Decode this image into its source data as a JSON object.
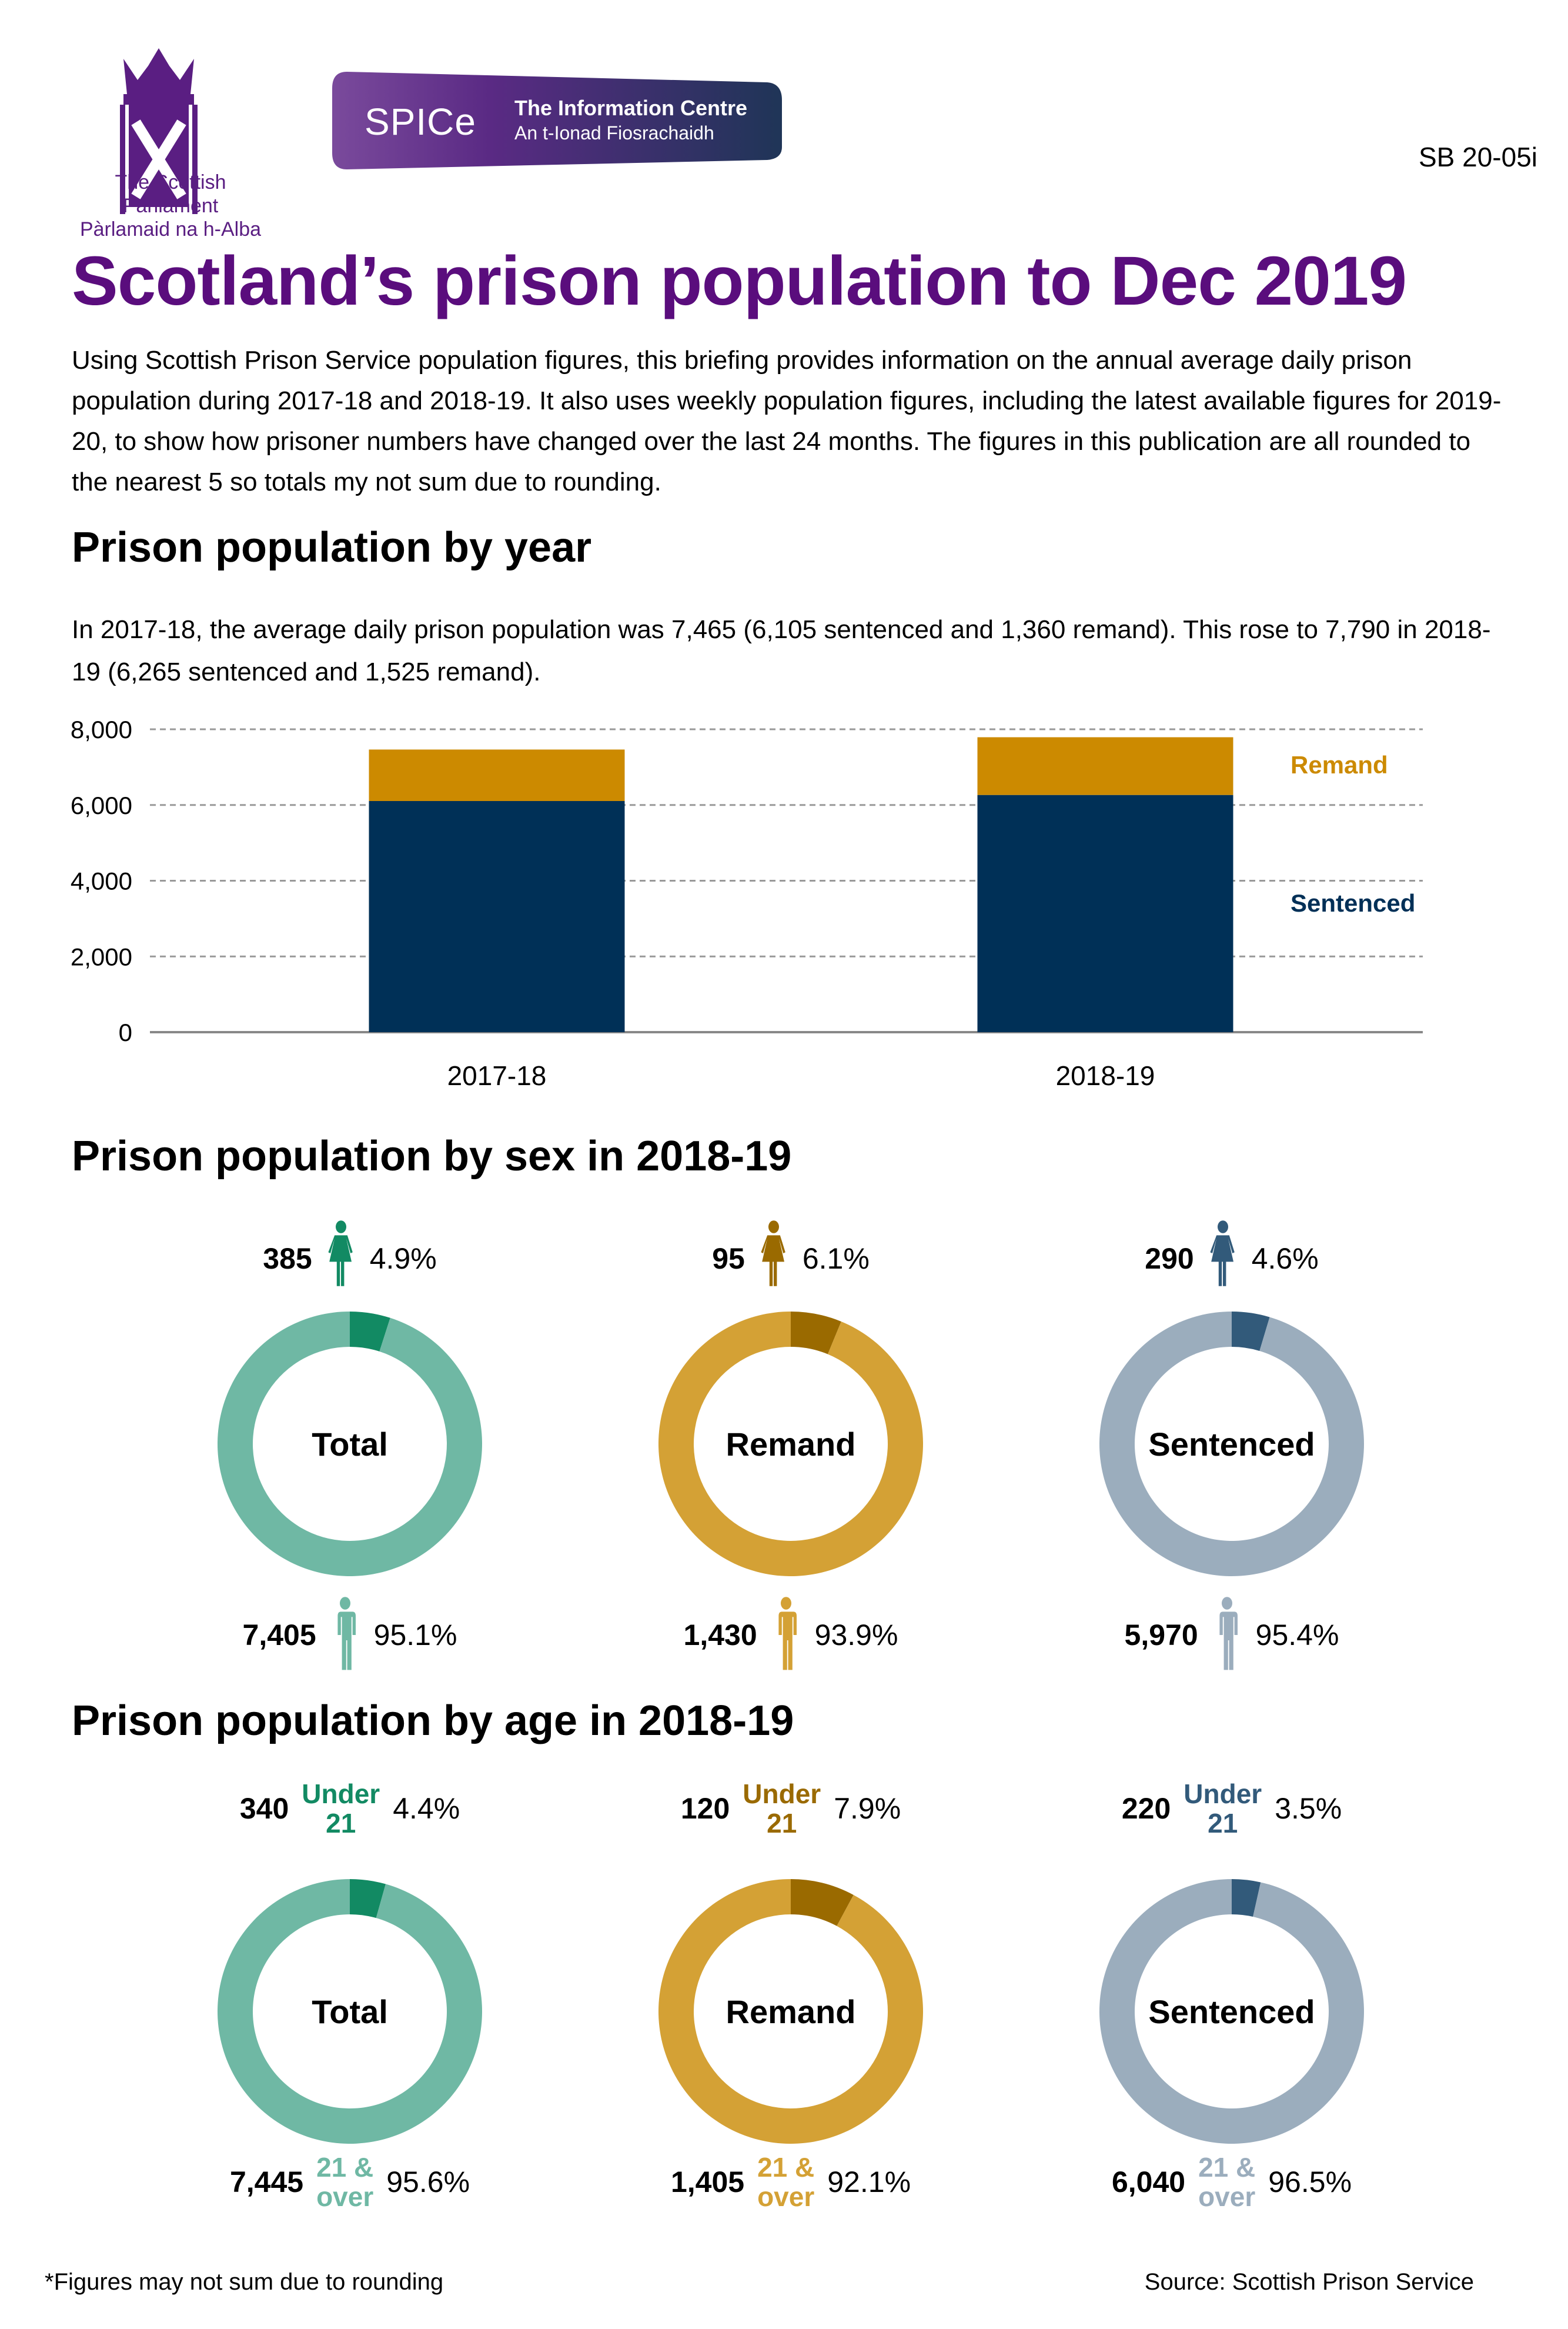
{
  "header": {
    "parliament_name_en": "The Scottish Parliament",
    "parliament_name_gd": "Pàrlamaid na h-Alba",
    "spice_acronym": "SPICe",
    "spice_title_en": "The Information Centre",
    "spice_title_gd": "An t-Ionad Fiosrachaidh",
    "briefing_code": "SB 20-05i",
    "colors": {
      "parliament_purple": "#5a1e82",
      "spice_gradient_start": "#7a4a9c",
      "spice_gradient_end": "#1f3557"
    }
  },
  "title": "Scotland’s prison population to Dec 2019",
  "intro": "Using Scottish Prison Service population figures, this briefing provides information on the annual average daily prison population during 2017-18 and 2018-19. It also uses weekly population figures, including the latest available figures for 2019-20, to show how prisoner numbers have changed over the last 24 months. The figures in this publication are all rounded to the nearest 5 so totals my not sum due to rounding.",
  "by_year": {
    "heading": "Prison population by year",
    "text": "In 2017-18, the average daily prison population was 7,465 (6,105 sentenced and 1,360 remand). This rose to 7,790 in 2018-19 (6,265 sentenced and 1,525 remand)."
  },
  "chart_data": [
    {
      "type": "bar",
      "stacked": true,
      "title": "Prison population by year",
      "categories": [
        "2017-18",
        "2018-19"
      ],
      "series": [
        {
          "name": "Sentenced",
          "values": [
            6105,
            6265
          ],
          "color": "#003057"
        },
        {
          "name": "Remand",
          "values": [
            1360,
            1525
          ],
          "color": "#cc8a00"
        }
      ],
      "ylim": [
        0,
        8000
      ],
      "yticks": [
        0,
        2000,
        4000,
        6000,
        8000
      ],
      "ytick_labels": [
        "0",
        "2,000",
        "4,000",
        "6,000",
        "8,000"
      ],
      "grid": true,
      "legend": "right",
      "xlabel": "",
      "ylabel": ""
    },
    {
      "type": "pie",
      "variant": "donut",
      "title": "Prison population by sex in 2018-19",
      "charts": [
        {
          "label": "Total",
          "slices": [
            {
              "name": "Female",
              "value": 385,
              "pct": "4.9%"
            },
            {
              "name": "Male",
              "value": 7405,
              "pct": "95.1%"
            }
          ],
          "colors": [
            "#128a63",
            "#6fb8a4"
          ]
        },
        {
          "label": "Remand",
          "slices": [
            {
              "name": "Female",
              "value": 95,
              "pct": "6.1%"
            },
            {
              "name": "Male",
              "value": 1430,
              "pct": "93.9%"
            }
          ],
          "colors": [
            "#9a6a00",
            "#d4a135"
          ]
        },
        {
          "label": "Sentenced",
          "slices": [
            {
              "name": "Female",
              "value": 290,
              "pct": "4.6%"
            },
            {
              "name": "Male",
              "value": 5970,
              "pct": "95.4%"
            }
          ],
          "colors": [
            "#325a7a",
            "#9badbd"
          ]
        }
      ]
    },
    {
      "type": "pie",
      "variant": "donut",
      "title": "Prison population by age in 2018-19",
      "charts": [
        {
          "label": "Total",
          "slices": [
            {
              "name": "Under 21",
              "value": 340,
              "pct": "4.4%"
            },
            {
              "name": "21 & over",
              "value": 7445,
              "pct": "95.6%"
            }
          ],
          "colors": [
            "#128a63",
            "#6fb8a4"
          ]
        },
        {
          "label": "Remand",
          "slices": [
            {
              "name": "Under 21",
              "value": 120,
              "pct": "7.9%"
            },
            {
              "name": "21 & over",
              "value": 1405,
              "pct": "92.1%"
            }
          ],
          "colors": [
            "#9a6a00",
            "#d4a135"
          ]
        },
        {
          "label": "Sentenced",
          "slices": [
            {
              "name": "Under 21",
              "value": 220,
              "pct": "3.5%"
            },
            {
              "name": "21 & over",
              "value": 6040,
              "pct": "96.5%"
            }
          ],
          "colors": [
            "#325a7a",
            "#9badbd"
          ]
        }
      ]
    }
  ],
  "by_sex": {
    "heading": "Prison population by sex in 2018-19",
    "groups": [
      {
        "label": "Total",
        "female_n": "385",
        "female_pct": "4.9%",
        "male_n": "7,405",
        "male_pct": "95.1%"
      },
      {
        "label": "Remand",
        "female_n": "95",
        "female_pct": "6.1%",
        "male_n": "1,430",
        "male_pct": "93.9%"
      },
      {
        "label": "Sentenced",
        "female_n": "290",
        "female_pct": "4.6%",
        "male_n": "5,970",
        "male_pct": "95.4%"
      }
    ]
  },
  "by_age": {
    "heading": "Prison population by age in 2018-19",
    "under_label_1": "Under",
    "under_label_2": "21",
    "over_label_1": "21 &",
    "over_label_2": "over",
    "groups": [
      {
        "label": "Total",
        "under_n": "340",
        "under_pct": "4.4%",
        "over_n": "7,445",
        "over_pct": "95.6%"
      },
      {
        "label": "Remand",
        "under_n": "120",
        "under_pct": "7.9%",
        "over_n": "1,405",
        "over_pct": "92.1%"
      },
      {
        "label": "Sentenced",
        "under_n": "220",
        "under_pct": "3.5%",
        "over_n": "6,040",
        "over_pct": "96.5%"
      }
    ]
  },
  "footer": {
    "note": "*Figures may not sum due to rounding",
    "source": "Source: Scottish Prison Service"
  }
}
